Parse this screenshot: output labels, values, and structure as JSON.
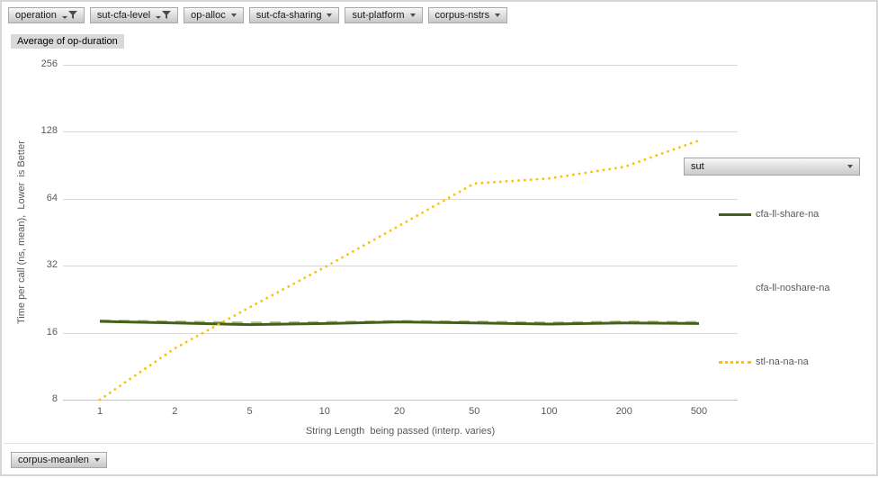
{
  "pivot": {
    "value_field": "Average of op-duration",
    "legend_field": "sut",
    "bottom_field": "corpus-meanlen",
    "top_fields": [
      {
        "label": "operation",
        "filtered": true
      },
      {
        "label": "sut-cfa-level",
        "filtered": true
      },
      {
        "label": "op-alloc",
        "filtered": false
      },
      {
        "label": "sut-cfa-sharing",
        "filtered": false
      },
      {
        "label": "sut-platform",
        "filtered": false
      },
      {
        "label": "corpus-nstrs",
        "filtered": false
      }
    ]
  },
  "chart_data": {
    "type": "line",
    "x_categories": [
      "1",
      "2",
      "5",
      "10",
      "20",
      "50",
      "100",
      "200",
      "500"
    ],
    "xlabel": "String Length  being passed (interp. varies)",
    "ylabel": "Time per call (ns, mean),  Lower  is Better",
    "y_scale": "log2",
    "y_ticks": [
      256,
      128,
      64,
      32,
      16,
      8
    ],
    "ylim": [
      8,
      256
    ],
    "grid": "horizontal",
    "legend_position": "right",
    "series": [
      {
        "name": "cfa-ll-share-na",
        "color": "#44601b",
        "style": "solid",
        "values": [
          18.0,
          17.7,
          17.4,
          17.6,
          17.9,
          17.7,
          17.5,
          17.7,
          17.6
        ]
      },
      {
        "name": "cfa-ll-noshare-na",
        "color": "#a9c47f",
        "style": "hidden-behind",
        "values": [
          17.9,
          17.7,
          17.5,
          17.6,
          17.8,
          17.7,
          17.5,
          17.7,
          17.6
        ]
      },
      {
        "name": "stl-na-na-na",
        "color": "#ffc000",
        "style": "dotted",
        "values": [
          8,
          13.6,
          20.8,
          31.5,
          48.5,
          75,
          79,
          89,
          117
        ]
      }
    ]
  },
  "colors": {
    "grid": "#d9d9d9",
    "axis_line": "#c3c3c3",
    "tick_text": "#595959",
    "accent_yellow": "#ffc000",
    "accent_green": "#44601b"
  }
}
